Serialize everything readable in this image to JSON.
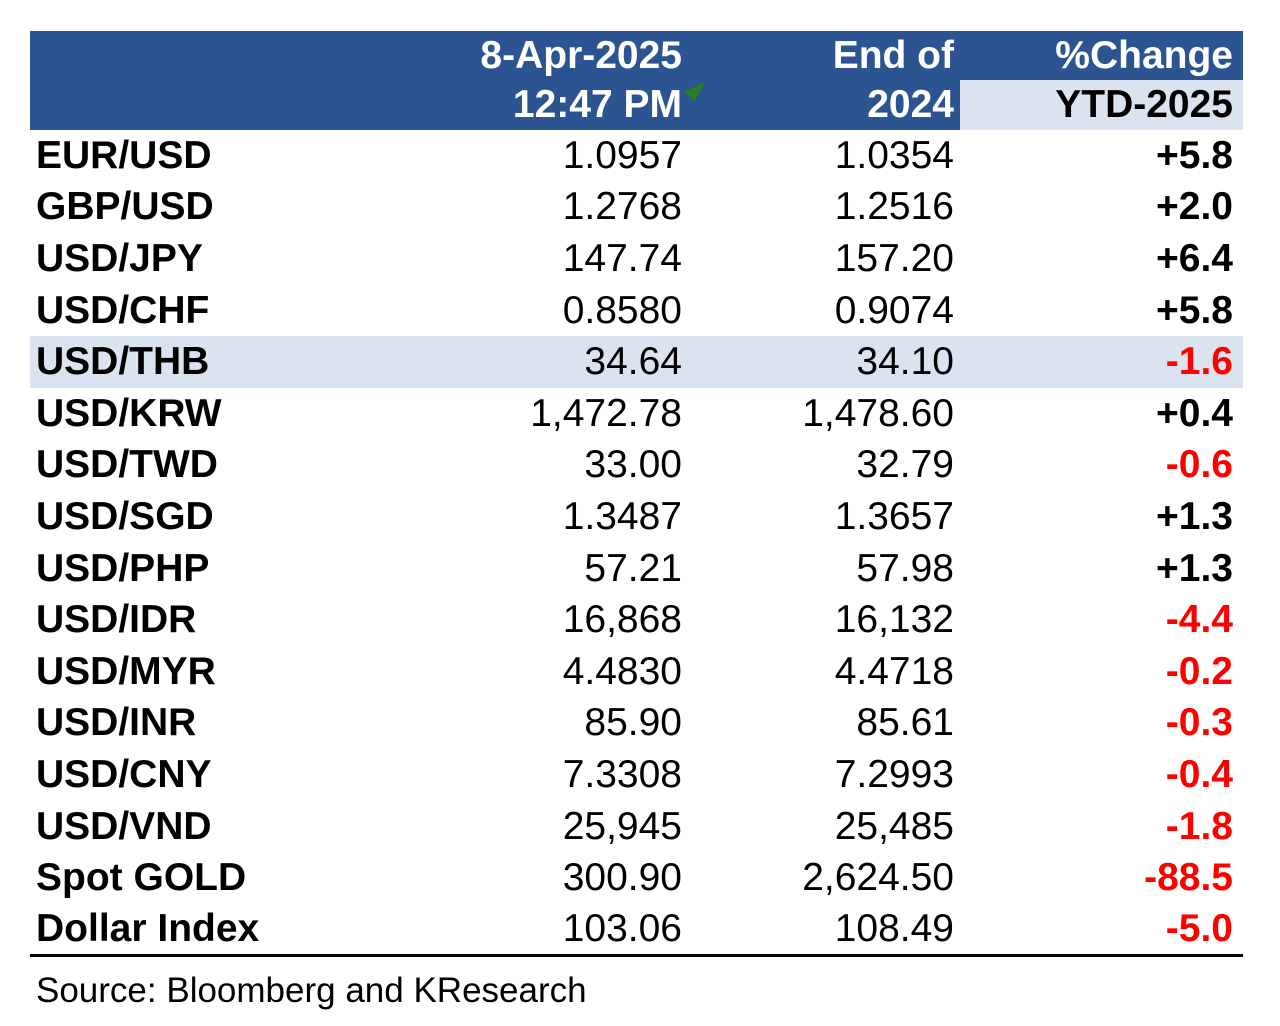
{
  "table": {
    "header": {
      "label_col": "",
      "date_line1": "8-Apr-2025",
      "date_line2": "12:47 PM",
      "end_line1": "End of",
      "end_line2": "2024",
      "change_line1": "%Change",
      "change_line2": "YTD-2025",
      "flag_icon": "green-cell-comment-flag"
    },
    "rows": [
      {
        "pair": "EUR/USD",
        "current": "1.0957",
        "end_2024": "1.0354",
        "change": "+5.8",
        "highlighted": false
      },
      {
        "pair": "GBP/USD",
        "current": "1.2768",
        "end_2024": "1.2516",
        "change": "+2.0",
        "highlighted": false
      },
      {
        "pair": "USD/JPY",
        "current": "147.74",
        "end_2024": "157.20",
        "change": "+6.4",
        "highlighted": false
      },
      {
        "pair": "USD/CHF",
        "current": "0.8580",
        "end_2024": "0.9074",
        "change": "+5.8",
        "highlighted": false
      },
      {
        "pair": "USD/THB",
        "current": "34.64",
        "end_2024": "34.10",
        "change": "-1.6",
        "highlighted": true
      },
      {
        "pair": "USD/KRW",
        "current": "1,472.78",
        "end_2024": "1,478.60",
        "change": "+0.4",
        "highlighted": false
      },
      {
        "pair": "USD/TWD",
        "current": "33.00",
        "end_2024": "32.79",
        "change": "-0.6",
        "highlighted": false
      },
      {
        "pair": "USD/SGD",
        "current": "1.3487",
        "end_2024": "1.3657",
        "change": "+1.3",
        "highlighted": false
      },
      {
        "pair": "USD/PHP",
        "current": "57.21",
        "end_2024": "57.98",
        "change": "+1.3",
        "highlighted": false
      },
      {
        "pair": "USD/IDR",
        "current": "16,868",
        "end_2024": "16,132",
        "change": "-4.4",
        "highlighted": false
      },
      {
        "pair": "USD/MYR",
        "current": "4.4830",
        "end_2024": "4.4718",
        "change": "-0.2",
        "highlighted": false
      },
      {
        "pair": "USD/INR",
        "current": "85.90",
        "end_2024": "85.61",
        "change": "-0.3",
        "highlighted": false
      },
      {
        "pair": "USD/CNY",
        "current": "7.3308",
        "end_2024": "7.2993",
        "change": "-0.4",
        "highlighted": false
      },
      {
        "pair": "USD/VND",
        "current": "25,945",
        "end_2024": "25,485",
        "change": "-1.8",
        "highlighted": false
      },
      {
        "pair": "Spot GOLD",
        "current": "300.90",
        "end_2024": "2,624.50",
        "change": "-88.5",
        "highlighted": false
      },
      {
        "pair": "Dollar Index",
        "current": "103.06",
        "end_2024": "108.49",
        "change": "-5.0",
        "highlighted": false
      }
    ]
  },
  "footer": {
    "source": "Source: Bloomberg and KResearch"
  },
  "colors": {
    "header_bg": "#2B5490",
    "header_text": "#FFFFFF",
    "highlight_bg": "#DBE3F0",
    "negative_change": "#FF0000",
    "positive_change": "#000000",
    "flag_green": "#267F26"
  }
}
